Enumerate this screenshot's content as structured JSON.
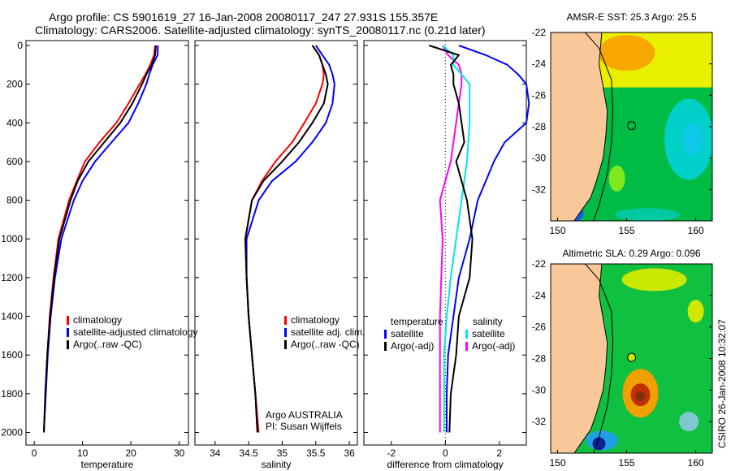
{
  "title": {
    "line1": "Argo profile: CS 5901619_27 16-Jan-2008 20080117_247 27.931S 155.357E",
    "line2": "Climatology: CARS2006. Satellite-adjusted climatology: synTS_20080117.nc (0.21d later)"
  },
  "colors": {
    "climatology": "#ff0000",
    "satellite": "#0000ff",
    "argo": "#000000",
    "sal_sat": "#00e5e5",
    "sal_argo": "#ff00ff",
    "land": "#f8c898"
  },
  "chart_data": [
    {
      "type": "line",
      "xlabel": "temperature",
      "ylabel": "",
      "xlim": [
        -1.7,
        31.9
      ],
      "ylim": [
        2065,
        -25
      ],
      "xticks": [
        0,
        10,
        20,
        30
      ],
      "yticks": [
        0,
        200,
        400,
        600,
        800,
        1000,
        1200,
        1400,
        1600,
        1800,
        2000
      ],
      "depth": [
        0,
        50,
        100,
        150,
        200,
        300,
        400,
        500,
        600,
        700,
        800,
        1000,
        1200,
        1400,
        1600,
        1800,
        2000
      ],
      "legend": [
        "climatology",
        "satellite-adjusted climatology",
        "Argo(..raw -QC)"
      ],
      "series": [
        {
          "name": "climatology",
          "color": "#ff0000",
          "values": [
            25.0,
            24.8,
            24.0,
            23.0,
            21.8,
            19.5,
            17.0,
            13.5,
            10.5,
            8.8,
            7.2,
            5.0,
            4.0,
            3.2,
            2.7,
            2.3,
            2.0
          ]
        },
        {
          "name": "satellite-adjusted climatology",
          "color": "#0000ff",
          "values": [
            25.6,
            25.5,
            24.5,
            23.8,
            23.2,
            21.5,
            19.5,
            16.0,
            12.6,
            10.0,
            8.2,
            5.6,
            4.3,
            3.4,
            2.8,
            2.4,
            2.0
          ]
        },
        {
          "name": "Argo(..raw -QC)",
          "color": "#000000",
          "values": [
            25.2,
            25.0,
            24.3,
            23.2,
            22.3,
            20.3,
            17.8,
            14.5,
            11.2,
            9.0,
            7.5,
            5.2,
            4.1,
            3.3,
            2.7,
            2.3,
            2.0
          ]
        }
      ]
    },
    {
      "type": "line",
      "xlabel": "salinity",
      "xlim": [
        33.7,
        36.12
      ],
      "ylim": [
        2065,
        -25
      ],
      "xticks": [
        34,
        34.5,
        35,
        35.5,
        36
      ],
      "depth": [
        0,
        50,
        100,
        150,
        200,
        300,
        400,
        500,
        600,
        700,
        800,
        1000,
        1200,
        1400,
        1600,
        1800,
        2000
      ],
      "legend": [
        "climatology",
        "satellite adj. clim.",
        "Argo(..raw -QC)"
      ],
      "annotation": [
        "Argo AUSTRALIA",
        "PI: Susan Wijffels"
      ],
      "series": [
        {
          "name": "climatology",
          "color": "#ff0000",
          "values": [
            35.45,
            35.55,
            35.6,
            35.62,
            35.6,
            35.5,
            35.33,
            35.15,
            34.9,
            34.7,
            34.55,
            34.45,
            34.47,
            34.5,
            34.55,
            34.6,
            34.65
          ]
        },
        {
          "name": "satellite adj. clim.",
          "color": "#0000ff",
          "values": [
            35.5,
            35.6,
            35.7,
            35.75,
            35.78,
            35.75,
            35.65,
            35.45,
            35.2,
            34.85,
            34.65,
            34.47,
            34.47,
            34.5,
            34.55,
            34.6,
            34.63
          ]
        },
        {
          "name": "Argo(..raw -QC)",
          "color": "#000000",
          "values": [
            35.45,
            35.55,
            35.6,
            35.65,
            35.68,
            35.62,
            35.45,
            35.25,
            35.0,
            34.72,
            34.55,
            34.45,
            34.47,
            34.5,
            34.55,
            34.6,
            34.63
          ]
        }
      ]
    },
    {
      "type": "line",
      "xlabel": "difference from climatology",
      "xlim": [
        -3.02,
        3.0
      ],
      "ylim": [
        2065,
        -25
      ],
      "xticks": [
        -2,
        0,
        2
      ],
      "depth": [
        0,
        50,
        100,
        150,
        200,
        300,
        400,
        500,
        600,
        700,
        800,
        1000,
        1200,
        1400,
        1600,
        1800,
        2000
      ],
      "legend_headers": [
        "temperature",
        "salinity"
      ],
      "legend": [
        "satellite",
        "Argo(-adj)",
        "satellite",
        "Argo(-adj)"
      ],
      "series": [
        {
          "name": "temperature satellite",
          "color": "#0000ff",
          "values": [
            0.5,
            1.5,
            2.3,
            2.7,
            3.0,
            3.1,
            3.0,
            2.2,
            1.8,
            1.5,
            1.2,
            0.9,
            0.5,
            0.3,
            0.1,
            0.05,
            0.05
          ]
        },
        {
          "name": "temperature Argo(-adj)",
          "color": "#000000",
          "values": [
            -0.6,
            0.5,
            0.2,
            0.3,
            0.3,
            0.5,
            0.6,
            0.7,
            0.4,
            0.6,
            0.8,
            1.0,
            0.9,
            0.5,
            0.4,
            0.2,
            0.15
          ]
        },
        {
          "name": "salinity satellite",
          "color": "#00e5e5",
          "values": [
            -0.1,
            0.3,
            0.3,
            0.6,
            0.9,
            0.9,
            0.9,
            0.85,
            0.8,
            0.7,
            0.6,
            0.4,
            0.2,
            0.05,
            -0.05,
            -0.05,
            -0.05
          ]
        },
        {
          "name": "salinity Argo(-adj)",
          "color": "#ff00ff",
          "values": [
            -0.1,
            0.1,
            0.5,
            0.6,
            0.6,
            0.5,
            0.4,
            0.3,
            0.2,
            0.0,
            -0.2,
            -0.1,
            -0.15,
            -0.2,
            -0.2,
            -0.2,
            -0.2
          ]
        }
      ]
    },
    {
      "type": "heatmap",
      "title": "AMSR-E SST: 25.3 Argo: 25.5",
      "xticks": [
        150,
        155,
        160
      ],
      "yticks": [
        -22,
        -24,
        -26,
        -28,
        -30,
        -32
      ],
      "xlim": [
        149.5,
        161.2
      ],
      "ylim": [
        -34,
        -22
      ],
      "marker": {
        "lon": 155.357,
        "lat": -27.931
      }
    },
    {
      "type": "heatmap",
      "title": "Altimetric SLA: 0.29 Argo: 0.096",
      "xticks": [
        150,
        155,
        160
      ],
      "yticks": [
        -22,
        -24,
        -26,
        -28,
        -30,
        -32
      ],
      "xlim": [
        149.5,
        161.2
      ],
      "ylim": [
        -34,
        -22
      ],
      "marker": {
        "lon": 155.357,
        "lat": -27.931
      }
    }
  ],
  "footer": "CSIRO 26-Jan-2008 10:32:07"
}
